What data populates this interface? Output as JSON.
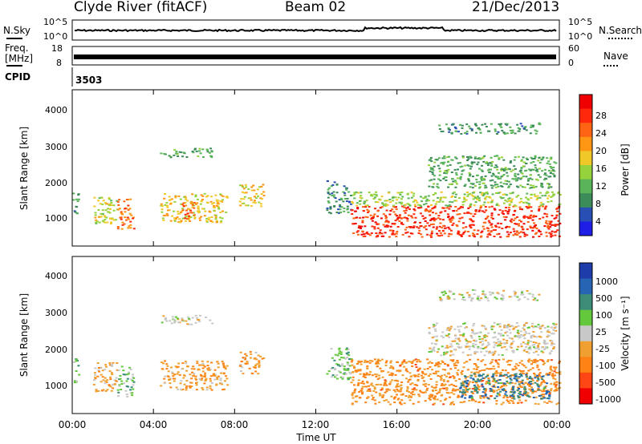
{
  "header": {
    "station": "Clyde River (fitACF)",
    "beam": "Beam 02",
    "date": "21/Dec/2013"
  },
  "top_panel": {
    "nsky_label": "N.Sky",
    "nsearch_label": "N.Search",
    "freq_label_1": "Freq.",
    "freq_label_2": "[MHz]",
    "nave_label": "Nave",
    "cpid_label": "CPID",
    "cpid_value": "3503",
    "noise_ticks_left": [
      "10^5",
      "10^0"
    ],
    "noise_ticks_right": [
      "10^5",
      "10^0"
    ],
    "freq_ticks": [
      "18",
      "8"
    ],
    "nave_ticks": [
      "60",
      "0"
    ]
  },
  "time_axis": {
    "title": "Time UT",
    "ticks": [
      "00:00",
      "04:00",
      "08:00",
      "12:00",
      "16:00",
      "20:00",
      "00:00"
    ]
  },
  "power_panel": {
    "ylabel": "Slant Range [km]",
    "yticks": [
      "4000",
      "3000",
      "2000",
      "1000"
    ],
    "colorbar_label": "Power [dB]",
    "colorbar_ticks": [
      "28",
      "24",
      "20",
      "16",
      "12",
      "8",
      "4"
    ],
    "colors": [
      "#1e1ee6",
      "#2850b4",
      "#3c8c5a",
      "#5ab45a",
      "#96d23c",
      "#f0c828",
      "#ff9614",
      "#ff6414",
      "#ff280a",
      "#f00000"
    ]
  },
  "velocity_panel": {
    "ylabel": "Slant Range [km]",
    "yticks": [
      "4000",
      "3000",
      "2000",
      "1000"
    ],
    "colorbar_label": "Velocity [m s⁻¹]",
    "colorbar_ticks": [
      "1000",
      "500",
      "100",
      "25",
      "-25",
      "-100",
      "-500",
      "-1000"
    ],
    "colors": [
      "#1e3caa",
      "#2864b4",
      "#3c8c78",
      "#64c83c",
      "#c8c8c8",
      "#f0a030",
      "#ff8214",
      "#ff4614",
      "#f00000"
    ]
  },
  "chart_data": [
    {
      "type": "heatmap",
      "title": "Power",
      "xlabel": "Time UT",
      "ylabel": "Slant Range [km]",
      "xlim": [
        0,
        24
      ],
      "ylim": [
        180,
        4500
      ],
      "colorbar": {
        "label": "Power [dB]",
        "range": [
          0,
          32
        ]
      },
      "regions": [
        {
          "t0": 0.0,
          "t1": 0.3,
          "r0": 1000,
          "r1": 1700,
          "value": 8
        },
        {
          "t0": 1.0,
          "t1": 2.2,
          "r0": 800,
          "r1": 1600,
          "value": 16
        },
        {
          "t0": 2.2,
          "t1": 3.0,
          "r0": 650,
          "r1": 1500,
          "value": 24
        },
        {
          "t0": 4.3,
          "t1": 7.6,
          "r0": 850,
          "r1": 1650,
          "value": 18
        },
        {
          "t0": 5.3,
          "t1": 6.0,
          "r0": 950,
          "r1": 1400,
          "value": 26
        },
        {
          "t0": 4.3,
          "t1": 6.9,
          "r0": 2650,
          "r1": 2900,
          "value": 10
        },
        {
          "t0": 8.2,
          "t1": 9.4,
          "r0": 1300,
          "r1": 1900,
          "value": 18
        },
        {
          "t0": 12.5,
          "t1": 13.7,
          "r0": 1100,
          "r1": 2000,
          "value": 8
        },
        {
          "t0": 13.7,
          "t1": 24.0,
          "r0": 450,
          "r1": 1300,
          "value": 28
        },
        {
          "t0": 13.7,
          "t1": 24.0,
          "r0": 1300,
          "r1": 1700,
          "value": 14
        },
        {
          "t0": 17.5,
          "t1": 23.8,
          "r0": 1800,
          "r1": 2700,
          "value": 10
        },
        {
          "t0": 18.0,
          "t1": 23.0,
          "r0": 3300,
          "r1": 3600,
          "value": 8
        }
      ]
    },
    {
      "type": "heatmap",
      "title": "Velocity",
      "xlabel": "Time UT",
      "ylabel": "Slant Range [km]",
      "xlim": [
        0,
        24
      ],
      "ylim": [
        180,
        4500
      ],
      "colorbar": {
        "label": "Velocity [m s⁻¹]",
        "range": [
          -1000,
          1000
        ]
      },
      "regions": [
        {
          "t0": 0.0,
          "t1": 0.3,
          "r0": 1000,
          "r1": 1700,
          "value": 300
        },
        {
          "t0": 1.0,
          "t1": 2.2,
          "r0": 800,
          "r1": 1600,
          "value": -300
        },
        {
          "t0": 2.2,
          "t1": 3.0,
          "r0": 650,
          "r1": 1500,
          "value": 200
        },
        {
          "t0": 4.3,
          "t1": 7.6,
          "r0": 850,
          "r1": 1650,
          "value": -300
        },
        {
          "t0": 4.3,
          "t1": 6.9,
          "r0": 2650,
          "r1": 2900,
          "value": 0
        },
        {
          "t0": 8.2,
          "t1": 9.4,
          "r0": 1300,
          "r1": 1900,
          "value": -300
        },
        {
          "t0": 12.5,
          "t1": 13.7,
          "r0": 1100,
          "r1": 2000,
          "value": 200
        },
        {
          "t0": 13.7,
          "t1": 24.0,
          "r0": 450,
          "r1": 1700,
          "value": -400
        },
        {
          "t0": 19.0,
          "t1": 23.5,
          "r0": 600,
          "r1": 1300,
          "value": 600
        },
        {
          "t0": 17.5,
          "t1": 23.8,
          "r0": 1800,
          "r1": 2700,
          "value": -50
        },
        {
          "t0": 18.0,
          "t1": 23.0,
          "r0": 3300,
          "r1": 3600,
          "value": 10
        }
      ]
    }
  ]
}
